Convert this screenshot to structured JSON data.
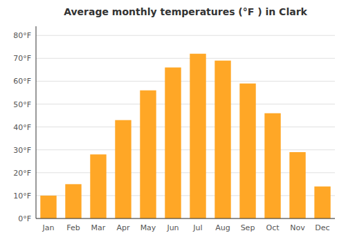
{
  "chart_data": {
    "type": "bar",
    "title": "Average monthly temperatures (°F ) in Clark",
    "categories": [
      "Jan",
      "Feb",
      "Mar",
      "Apr",
      "May",
      "Jun",
      "Jul",
      "Aug",
      "Sep",
      "Oct",
      "Nov",
      "Dec"
    ],
    "values": [
      10,
      15,
      28,
      43,
      56,
      66,
      72,
      69,
      59,
      46,
      29,
      14
    ],
    "color": "#FFA726",
    "ylim": [
      0,
      84
    ],
    "yticks": [
      {
        "value": 0,
        "label": "0°F"
      },
      {
        "value": 10,
        "label": "10°F"
      },
      {
        "value": 20,
        "label": "20°F"
      },
      {
        "value": 30,
        "label": "30°F"
      },
      {
        "value": 40,
        "label": "40°F"
      },
      {
        "value": 50,
        "label": "50°F"
      },
      {
        "value": 60,
        "label": "60°F"
      },
      {
        "value": 70,
        "label": "70°F"
      },
      {
        "value": 80,
        "label": "80°F"
      }
    ],
    "grid": true
  }
}
